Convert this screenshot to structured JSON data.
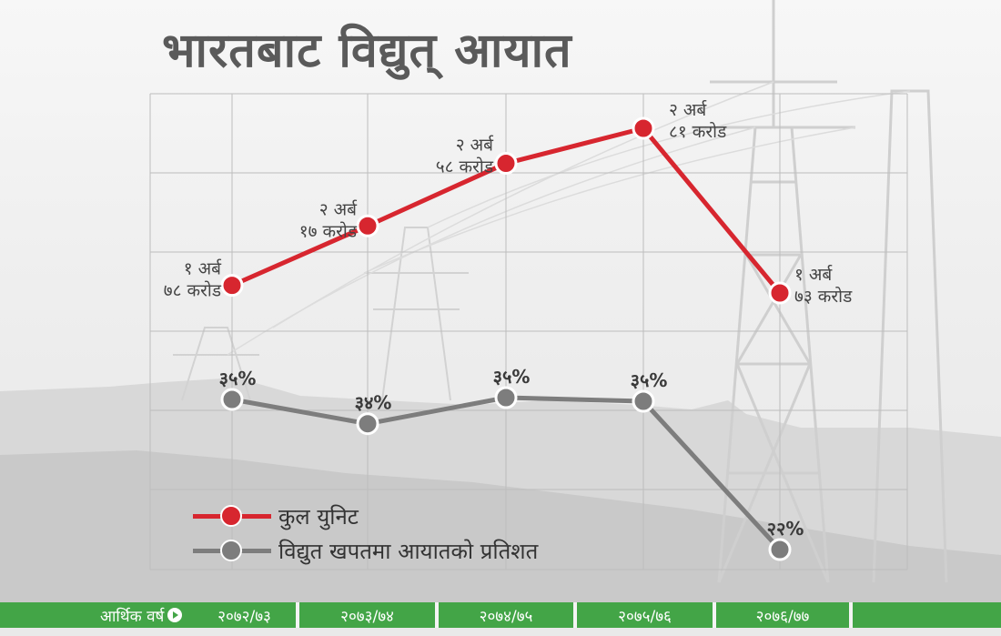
{
  "title": "भारतबाट विद्युत् आयात",
  "colors": {
    "red": "#d7262f",
    "gray": "#7d7d7d",
    "green": "#43a547"
  },
  "legend": [
    {
      "label": "कुल युनिट",
      "color": "#d7262f"
    },
    {
      "label": "विद्युत खपतमा आयातको प्रतिशत",
      "color": "#7d7d7d"
    }
  ],
  "footer": {
    "axis_label": "आर्थिक वर्ष",
    "icon": "play-circle-icon"
  },
  "chart_data": {
    "type": "line",
    "title": "भारतबाट विद्युत् आयात",
    "xlabel": "आर्थिक वर्ष",
    "categories": [
      "२०७२/७३",
      "२०७३/७४",
      "२०७४/७५",
      "२०७५/७६",
      "२०७६/७७"
    ],
    "grid": true,
    "legend_position": "bottom-left",
    "series": [
      {
        "name": "कुल युनिट",
        "color": "#d7262f",
        "values": [
          178,
          217,
          258,
          281,
          173
        ],
        "unit": "करोड",
        "labels": [
          [
            "१ अर्ब",
            "७८ करोड"
          ],
          [
            "२ अर्ब",
            "१७ करोड"
          ],
          [
            "२ अर्ब",
            "५८ करोड"
          ],
          [
            "२ अर्ब",
            "८१ करोड"
          ],
          [
            "१ अर्ब",
            "७३ करोड"
          ]
        ]
      },
      {
        "name": "विद्युत खपतमा आयातको प्रतिशत",
        "color": "#7d7d7d",
        "values": [
          35,
          34,
          35,
          35,
          22
        ],
        "unit": "%",
        "labels": [
          "३५%",
          "३४%",
          "३५%",
          "३५%",
          "२२%"
        ]
      }
    ]
  }
}
